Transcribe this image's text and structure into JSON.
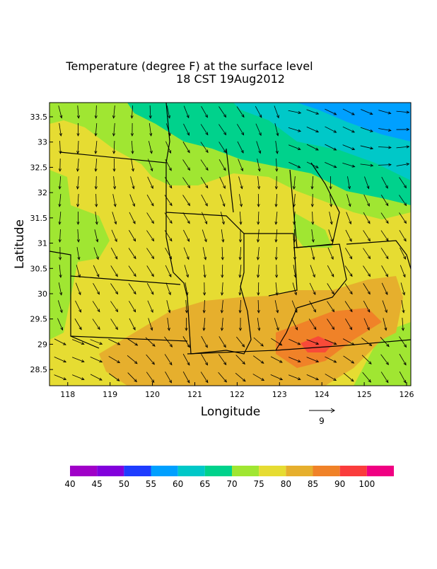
{
  "chart_data": {
    "type": "map",
    "title": "Temperature (degree F) at the surface level",
    "subtitle": "18 CST 19Aug2012",
    "x_label": "Longitude",
    "y_label": "Latitude",
    "xlim": [
      117.57,
      126.1
    ],
    "xticks": [
      118,
      119,
      120,
      121,
      122,
      123,
      124,
      125,
      126
    ],
    "ylim": [
      28.18,
      33.78
    ],
    "yticks": [
      28.5,
      29,
      29.5,
      30,
      30.5,
      31,
      31.5,
      32,
      32.5,
      33,
      33.5
    ],
    "reference_vector": "9",
    "colorbar": {
      "colors": [
        "#a000c8",
        "#8200dc",
        "#1e3cff",
        "#00a0ff",
        "#00c8c8",
        "#00d28c",
        "#a0e632",
        "#e6dc32",
        "#e6af2d",
        "#f08228",
        "#fa3c3c",
        "#f00082"
      ],
      "labels": [
        40,
        45,
        50,
        55,
        60,
        65,
        70,
        75,
        80,
        85,
        90,
        100
      ]
    }
  }
}
